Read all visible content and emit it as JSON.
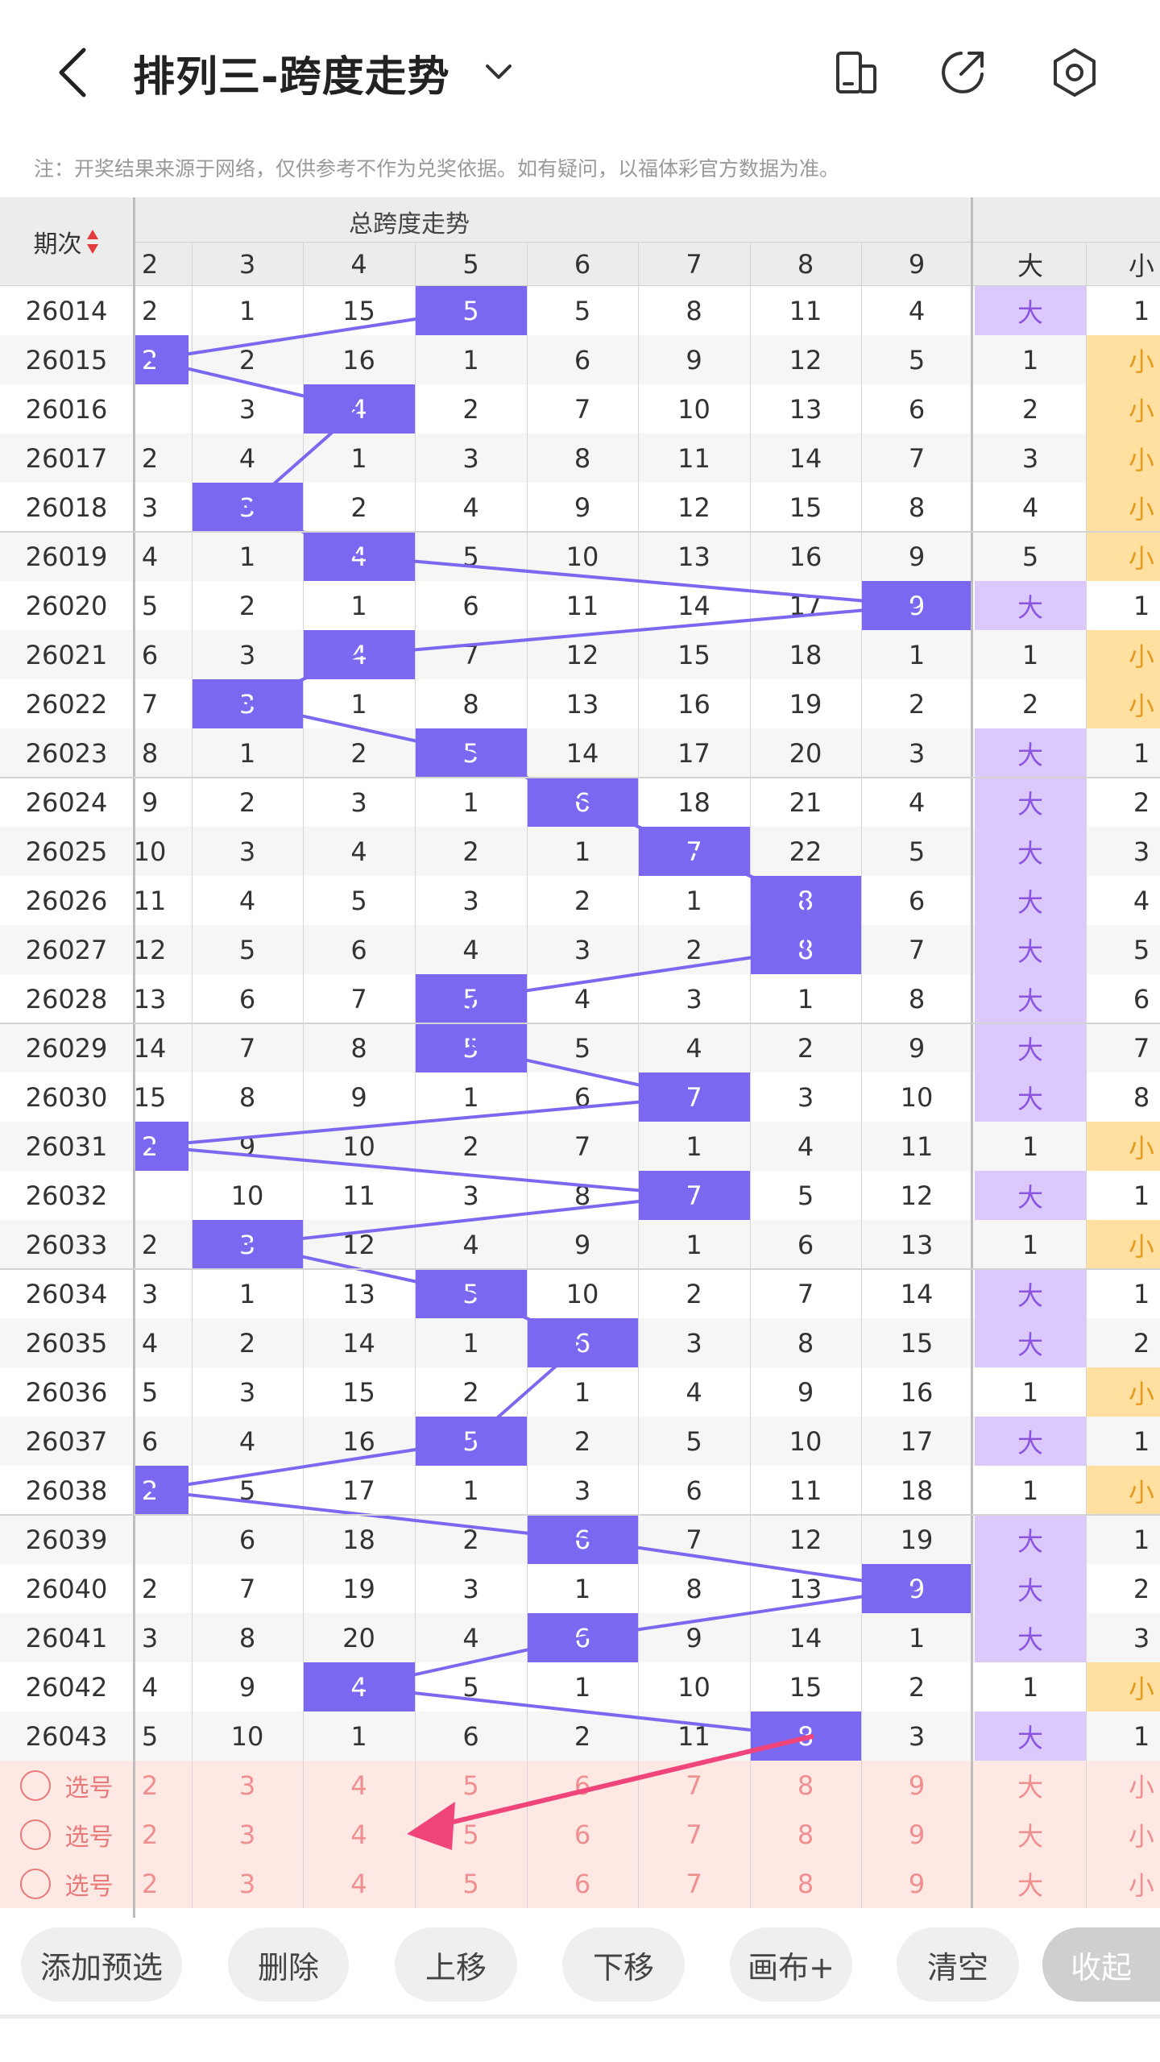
{
  "header": {
    "title": "排列三-跨度走势",
    "back_icon": "back-arrow-icon",
    "icons": [
      "layout-icon",
      "share-icon",
      "settings-icon"
    ]
  },
  "note": "注：开奖结果来源于网络，仅供参考不作为兑奖依据。如有疑问，以福体彩官方数据为准。",
  "table": {
    "issue_header": "期次",
    "group_header": "总跨度走势",
    "columns": [
      "2",
      "3",
      "4",
      "5",
      "6",
      "7",
      "8",
      "9",
      "大",
      "小"
    ],
    "rows": [
      {
        "issue": "26014",
        "cells": [
          "2",
          "1",
          "15",
          "5",
          "5",
          "8",
          "11",
          "4",
          "大",
          "1"
        ],
        "hit": 3
      },
      {
        "issue": "26015",
        "cells": [
          "2",
          "2",
          "16",
          "1",
          "6",
          "9",
          "12",
          "5",
          "1",
          "小"
        ],
        "hit": 0
      },
      {
        "issue": "26016",
        "cells": [
          "",
          "3",
          "4",
          "2",
          "7",
          "10",
          "13",
          "6",
          "2",
          "小"
        ],
        "hit": 2
      },
      {
        "issue": "26017",
        "cells": [
          "2",
          "4",
          "1",
          "3",
          "8",
          "11",
          "14",
          "7",
          "3",
          "小"
        ],
        "hit": -1
      },
      {
        "issue": "26018",
        "cells": [
          "3",
          "3",
          "2",
          "4",
          "9",
          "12",
          "15",
          "8",
          "4",
          "小"
        ],
        "hit": 1
      },
      {
        "issue": "26019",
        "cells": [
          "4",
          "1",
          "4",
          "5",
          "10",
          "13",
          "16",
          "9",
          "5",
          "小"
        ],
        "hit": 2
      },
      {
        "issue": "26020",
        "cells": [
          "5",
          "2",
          "1",
          "6",
          "11",
          "14",
          "17",
          "9",
          "大",
          "1"
        ],
        "hit": 7
      },
      {
        "issue": "26021",
        "cells": [
          "6",
          "3",
          "4",
          "7",
          "12",
          "15",
          "18",
          "1",
          "1",
          "小"
        ],
        "hit": 2
      },
      {
        "issue": "26022",
        "cells": [
          "7",
          "3",
          "1",
          "8",
          "13",
          "16",
          "19",
          "2",
          "2",
          "小"
        ],
        "hit": 1
      },
      {
        "issue": "26023",
        "cells": [
          "8",
          "1",
          "2",
          "5",
          "14",
          "17",
          "20",
          "3",
          "大",
          "1"
        ],
        "hit": 3
      },
      {
        "issue": "26024",
        "cells": [
          "9",
          "2",
          "3",
          "1",
          "6",
          "18",
          "21",
          "4",
          "大",
          "2"
        ],
        "hit": 4
      },
      {
        "issue": "26025",
        "cells": [
          "10",
          "3",
          "4",
          "2",
          "1",
          "7",
          "22",
          "5",
          "大",
          "3"
        ],
        "hit": 5
      },
      {
        "issue": "26026",
        "cells": [
          "11",
          "4",
          "5",
          "3",
          "2",
          "1",
          "8",
          "6",
          "大",
          "4"
        ],
        "hit": 6
      },
      {
        "issue": "26027",
        "cells": [
          "12",
          "5",
          "6",
          "4",
          "3",
          "2",
          "8",
          "7",
          "大",
          "5"
        ],
        "hit": 6
      },
      {
        "issue": "26028",
        "cells": [
          "13",
          "6",
          "7",
          "5",
          "4",
          "3",
          "1",
          "8",
          "大",
          "6"
        ],
        "hit": 3
      },
      {
        "issue": "26029",
        "cells": [
          "14",
          "7",
          "8",
          "5",
          "5",
          "4",
          "2",
          "9",
          "大",
          "7"
        ],
        "hit": 3
      },
      {
        "issue": "26030",
        "cells": [
          "15",
          "8",
          "9",
          "1",
          "6",
          "7",
          "3",
          "10",
          "大",
          "8"
        ],
        "hit": 5
      },
      {
        "issue": "26031",
        "cells": [
          "2",
          "9",
          "10",
          "2",
          "7",
          "1",
          "4",
          "11",
          "1",
          "小"
        ],
        "hit": 0
      },
      {
        "issue": "26032",
        "cells": [
          "",
          "10",
          "11",
          "3",
          "8",
          "7",
          "5",
          "12",
          "大",
          "1"
        ],
        "hit": 5
      },
      {
        "issue": "26033",
        "cells": [
          "2",
          "3",
          "12",
          "4",
          "9",
          "1",
          "6",
          "13",
          "1",
          "小"
        ],
        "hit": 1
      },
      {
        "issue": "26034",
        "cells": [
          "3",
          "1",
          "13",
          "5",
          "10",
          "2",
          "7",
          "14",
          "大",
          "1"
        ],
        "hit": 3
      },
      {
        "issue": "26035",
        "cells": [
          "4",
          "2",
          "14",
          "1",
          "6",
          "3",
          "8",
          "15",
          "大",
          "2"
        ],
        "hit": 4
      },
      {
        "issue": "26036",
        "cells": [
          "5",
          "3",
          "15",
          "2",
          "1",
          "4",
          "9",
          "16",
          "1",
          "小"
        ],
        "hit": -1
      },
      {
        "issue": "26037",
        "cells": [
          "6",
          "4",
          "16",
          "5",
          "2",
          "5",
          "10",
          "17",
          "大",
          "1"
        ],
        "hit": 3
      },
      {
        "issue": "26038",
        "cells": [
          "2",
          "5",
          "17",
          "1",
          "3",
          "6",
          "11",
          "18",
          "1",
          "小"
        ],
        "hit": 0
      },
      {
        "issue": "26039",
        "cells": [
          "",
          "6",
          "18",
          "2",
          "6",
          "7",
          "12",
          "19",
          "大",
          "1"
        ],
        "hit": 4
      },
      {
        "issue": "26040",
        "cells": [
          "2",
          "7",
          "19",
          "3",
          "1",
          "8",
          "13",
          "9",
          "大",
          "2"
        ],
        "hit": 7
      },
      {
        "issue": "26041",
        "cells": [
          "3",
          "8",
          "20",
          "4",
          "6",
          "9",
          "14",
          "1",
          "大",
          "3"
        ],
        "hit": 4
      },
      {
        "issue": "26042",
        "cells": [
          "4",
          "9",
          "4",
          "5",
          "1",
          "10",
          "15",
          "2",
          "1",
          "小"
        ],
        "hit": 2
      },
      {
        "issue": "26043",
        "cells": [
          "5",
          "10",
          "1",
          "6",
          "2",
          "11",
          "8",
          "3",
          "大",
          "1"
        ],
        "hit": 6
      }
    ],
    "pick_label": "选号",
    "pick_rows": [
      [
        "2",
        "3",
        "4",
        "5",
        "6",
        "7",
        "8",
        "9",
        "大",
        "小"
      ],
      [
        "2",
        "3",
        "4",
        "5",
        "6",
        "7",
        "8",
        "9",
        "大",
        "小"
      ],
      [
        "2",
        "3",
        "4",
        "5",
        "6",
        "7",
        "8",
        "9",
        "大",
        "小"
      ]
    ]
  },
  "toolbar": {
    "buttons": [
      "添加预选",
      "删除",
      "上移",
      "下移",
      "画布+",
      "清空",
      "收起"
    ]
  },
  "colors": {
    "hit": "#7a69f0",
    "big": "#dcc9fb",
    "small": "#ffe0a0",
    "pick_bg": "#fde8e4",
    "annotation": "#f0457a"
  }
}
